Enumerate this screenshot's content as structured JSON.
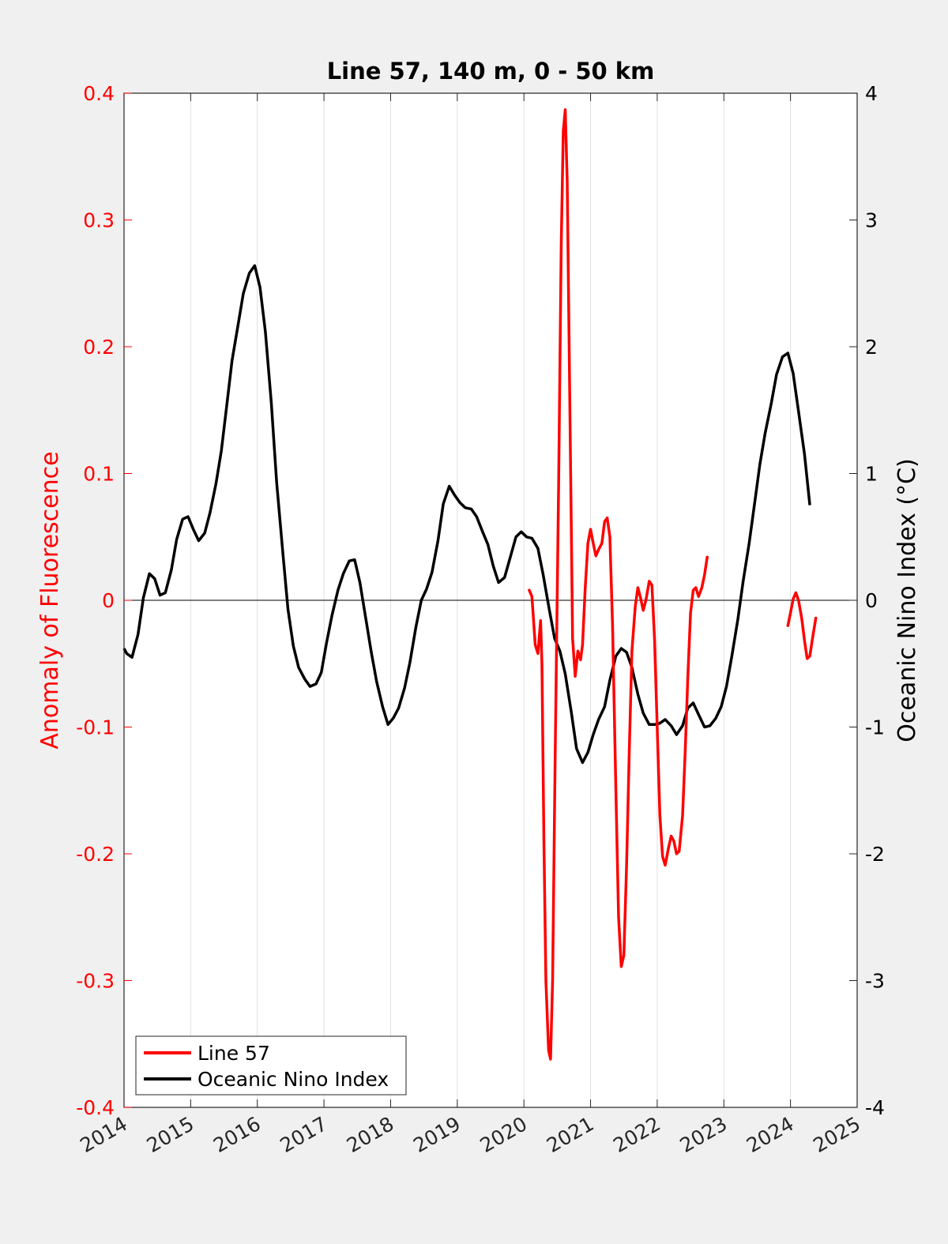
{
  "chart_data": {
    "type": "line",
    "title": "Line 57, 140 m, 0 - 50 km",
    "ylabel_left": "Anomaly of Fluorescence",
    "ylabel_right": "Oceanic Nino Index (°C)",
    "xlabel": "",
    "xlim": [
      2014,
      2025
    ],
    "ylim_left": [
      -0.4,
      0.4
    ],
    "ylim_right": [
      -4,
      4
    ],
    "x_ticks": [
      "2014",
      "2015",
      "2016",
      "2017",
      "2018",
      "2019",
      "2020",
      "2021",
      "2022",
      "2023",
      "2024",
      "2025"
    ],
    "y_ticks_left": [
      "0.4",
      "0.3",
      "0.2",
      "0.1",
      "0",
      "-0.1",
      "-0.2",
      "-0.3",
      "-0.4"
    ],
    "y_ticks_right": [
      "4",
      "3",
      "2",
      "1",
      "0",
      "-1",
      "-2",
      "-3",
      "-4"
    ],
    "grid": "vertical",
    "zero_line": true,
    "legend_position": "bottom-left",
    "colors": {
      "left_axis": "#ff0000",
      "line57": "#ff0000",
      "oni": "#000000",
      "right_axis": "#000000"
    },
    "series": [
      {
        "name": "Line 57",
        "axis": "left",
        "color": "#ff0000",
        "segments": [
          [
            [
              2020.08,
              0.008
            ],
            [
              2020.12,
              0.003
            ],
            [
              2020.17,
              -0.035
            ],
            [
              2020.21,
              -0.042
            ],
            [
              2020.25,
              -0.016
            ],
            [
              2020.27,
              -0.05
            ],
            [
              2020.3,
              -0.19
            ],
            [
              2020.33,
              -0.3
            ],
            [
              2020.37,
              -0.355
            ],
            [
              2020.4,
              -0.362
            ],
            [
              2020.43,
              -0.3
            ],
            [
              2020.47,
              -0.12
            ],
            [
              2020.52,
              0.09
            ],
            [
              2020.56,
              0.28
            ],
            [
              2020.59,
              0.37
            ],
            [
              2020.62,
              0.387
            ],
            [
              2020.65,
              0.33
            ],
            [
              2020.69,
              0.15
            ],
            [
              2020.73,
              -0.03
            ],
            [
              2020.77,
              -0.06
            ],
            [
              2020.81,
              -0.04
            ],
            [
              2020.85,
              -0.047
            ],
            [
              2020.88,
              -0.035
            ],
            [
              2020.92,
              0.01
            ],
            [
              2020.96,
              0.045
            ],
            [
              2021.0,
              0.056
            ],
            [
              2021.04,
              0.045
            ],
            [
              2021.08,
              0.035
            ],
            [
              2021.12,
              0.04
            ],
            [
              2021.17,
              0.045
            ],
            [
              2021.21,
              0.062
            ],
            [
              2021.25,
              0.065
            ],
            [
              2021.29,
              0.05
            ],
            [
              2021.33,
              -0.02
            ],
            [
              2021.38,
              -0.15
            ],
            [
              2021.42,
              -0.25
            ],
            [
              2021.46,
              -0.289
            ],
            [
              2021.5,
              -0.28
            ],
            [
              2021.54,
              -0.21
            ],
            [
              2021.58,
              -0.12
            ],
            [
              2021.62,
              -0.04
            ],
            [
              2021.67,
              -0.005
            ],
            [
              2021.71,
              0.01
            ],
            [
              2021.75,
              0.002
            ],
            [
              2021.79,
              -0.008
            ],
            [
              2021.83,
              0.0
            ],
            [
              2021.88,
              0.015
            ],
            [
              2021.92,
              0.012
            ],
            [
              2021.96,
              -0.03
            ],
            [
              2022.0,
              -0.1
            ],
            [
              2022.04,
              -0.17
            ],
            [
              2022.08,
              -0.202
            ],
            [
              2022.12,
              -0.209
            ],
            [
              2022.17,
              -0.195
            ],
            [
              2022.21,
              -0.186
            ],
            [
              2022.25,
              -0.19
            ],
            [
              2022.29,
              -0.2
            ],
            [
              2022.33,
              -0.198
            ],
            [
              2022.38,
              -0.17
            ],
            [
              2022.42,
              -0.12
            ],
            [
              2022.46,
              -0.06
            ],
            [
              2022.5,
              -0.01
            ],
            [
              2022.54,
              0.008
            ],
            [
              2022.58,
              0.01
            ],
            [
              2022.62,
              0.003
            ],
            [
              2022.67,
              0.01
            ],
            [
              2022.71,
              0.02
            ],
            [
              2022.75,
              0.034
            ]
          ],
          [
            [
              2023.96,
              -0.02
            ],
            [
              2024.0,
              -0.01
            ],
            [
              2024.04,
              0.001
            ],
            [
              2024.08,
              0.006
            ],
            [
              2024.12,
              0.0
            ],
            [
              2024.17,
              -0.015
            ],
            [
              2024.21,
              -0.032
            ],
            [
              2024.25,
              -0.046
            ],
            [
              2024.29,
              -0.044
            ],
            [
              2024.33,
              -0.03
            ],
            [
              2024.38,
              -0.014
            ]
          ]
        ]
      },
      {
        "name": "Oceanic Nino Index",
        "axis": "right",
        "color": "#000000",
        "points": [
          [
            2014.0,
            -0.38
          ],
          [
            2014.04,
            -0.42
          ],
          [
            2014.12,
            -0.45
          ],
          [
            2014.21,
            -0.27
          ],
          [
            2014.29,
            0.02
          ],
          [
            2014.38,
            0.21
          ],
          [
            2014.46,
            0.17
          ],
          [
            2014.54,
            0.04
          ],
          [
            2014.62,
            0.06
          ],
          [
            2014.71,
            0.24
          ],
          [
            2014.79,
            0.48
          ],
          [
            2014.88,
            0.64
          ],
          [
            2014.96,
            0.66
          ],
          [
            2015.04,
            0.56
          ],
          [
            2015.12,
            0.47
          ],
          [
            2015.21,
            0.53
          ],
          [
            2015.29,
            0.69
          ],
          [
            2015.38,
            0.92
          ],
          [
            2015.46,
            1.18
          ],
          [
            2015.54,
            1.53
          ],
          [
            2015.62,
            1.89
          ],
          [
            2015.71,
            2.17
          ],
          [
            2015.79,
            2.42
          ],
          [
            2015.88,
            2.58
          ],
          [
            2015.96,
            2.64
          ],
          [
            2016.04,
            2.47
          ],
          [
            2016.12,
            2.12
          ],
          [
            2016.21,
            1.56
          ],
          [
            2016.29,
            0.93
          ],
          [
            2016.38,
            0.39
          ],
          [
            2016.46,
            -0.07
          ],
          [
            2016.54,
            -0.36
          ],
          [
            2016.62,
            -0.53
          ],
          [
            2016.71,
            -0.62
          ],
          [
            2016.79,
            -0.68
          ],
          [
            2016.88,
            -0.66
          ],
          [
            2016.96,
            -0.57
          ],
          [
            2017.04,
            -0.33
          ],
          [
            2017.12,
            -0.12
          ],
          [
            2017.21,
            0.08
          ],
          [
            2017.29,
            0.21
          ],
          [
            2017.38,
            0.31
          ],
          [
            2017.46,
            0.32
          ],
          [
            2017.54,
            0.14
          ],
          [
            2017.62,
            -0.12
          ],
          [
            2017.71,
            -0.41
          ],
          [
            2017.79,
            -0.64
          ],
          [
            2017.88,
            -0.84
          ],
          [
            2017.96,
            -0.98
          ],
          [
            2018.04,
            -0.93
          ],
          [
            2018.12,
            -0.85
          ],
          [
            2018.21,
            -0.69
          ],
          [
            2018.29,
            -0.49
          ],
          [
            2018.38,
            -0.21
          ],
          [
            2018.46,
            0.0
          ],
          [
            2018.54,
            0.09
          ],
          [
            2018.62,
            0.22
          ],
          [
            2018.71,
            0.47
          ],
          [
            2018.79,
            0.76
          ],
          [
            2018.88,
            0.9
          ],
          [
            2018.96,
            0.83
          ],
          [
            2019.04,
            0.77
          ],
          [
            2019.12,
            0.73
          ],
          [
            2019.21,
            0.72
          ],
          [
            2019.29,
            0.66
          ],
          [
            2019.38,
            0.54
          ],
          [
            2019.46,
            0.44
          ],
          [
            2019.54,
            0.27
          ],
          [
            2019.62,
            0.14
          ],
          [
            2019.71,
            0.18
          ],
          [
            2019.79,
            0.33
          ],
          [
            2019.88,
            0.5
          ],
          [
            2019.96,
            0.54
          ],
          [
            2020.04,
            0.5
          ],
          [
            2020.12,
            0.49
          ],
          [
            2020.21,
            0.41
          ],
          [
            2020.29,
            0.2
          ],
          [
            2020.38,
            -0.07
          ],
          [
            2020.46,
            -0.3
          ],
          [
            2020.54,
            -0.4
          ],
          [
            2020.62,
            -0.58
          ],
          [
            2020.71,
            -0.88
          ],
          [
            2020.79,
            -1.17
          ],
          [
            2020.88,
            -1.28
          ],
          [
            2020.96,
            -1.2
          ],
          [
            2021.04,
            -1.06
          ],
          [
            2021.12,
            -0.94
          ],
          [
            2021.21,
            -0.84
          ],
          [
            2021.29,
            -0.63
          ],
          [
            2021.38,
            -0.44
          ],
          [
            2021.46,
            -0.38
          ],
          [
            2021.54,
            -0.41
          ],
          [
            2021.62,
            -0.53
          ],
          [
            2021.71,
            -0.74
          ],
          [
            2021.79,
            -0.89
          ],
          [
            2021.88,
            -0.98
          ],
          [
            2021.96,
            -0.98
          ],
          [
            2022.04,
            -0.97
          ],
          [
            2022.12,
            -0.94
          ],
          [
            2022.21,
            -0.99
          ],
          [
            2022.29,
            -1.06
          ],
          [
            2022.38,
            -0.99
          ],
          [
            2022.46,
            -0.85
          ],
          [
            2022.54,
            -0.81
          ],
          [
            2022.62,
            -0.9
          ],
          [
            2022.71,
            -1.0
          ],
          [
            2022.79,
            -0.99
          ],
          [
            2022.88,
            -0.93
          ],
          [
            2022.96,
            -0.84
          ],
          [
            2023.04,
            -0.68
          ],
          [
            2023.12,
            -0.44
          ],
          [
            2023.21,
            -0.15
          ],
          [
            2023.29,
            0.15
          ],
          [
            2023.38,
            0.45
          ],
          [
            2023.46,
            0.76
          ],
          [
            2023.54,
            1.07
          ],
          [
            2023.62,
            1.32
          ],
          [
            2023.71,
            1.55
          ],
          [
            2023.79,
            1.78
          ],
          [
            2023.88,
            1.92
          ],
          [
            2023.96,
            1.95
          ],
          [
            2024.04,
            1.79
          ],
          [
            2024.12,
            1.49
          ],
          [
            2024.21,
            1.15
          ],
          [
            2024.29,
            0.75
          ]
        ]
      }
    ],
    "legend": [
      "Line 57",
      "Oceanic Nino Index"
    ]
  }
}
